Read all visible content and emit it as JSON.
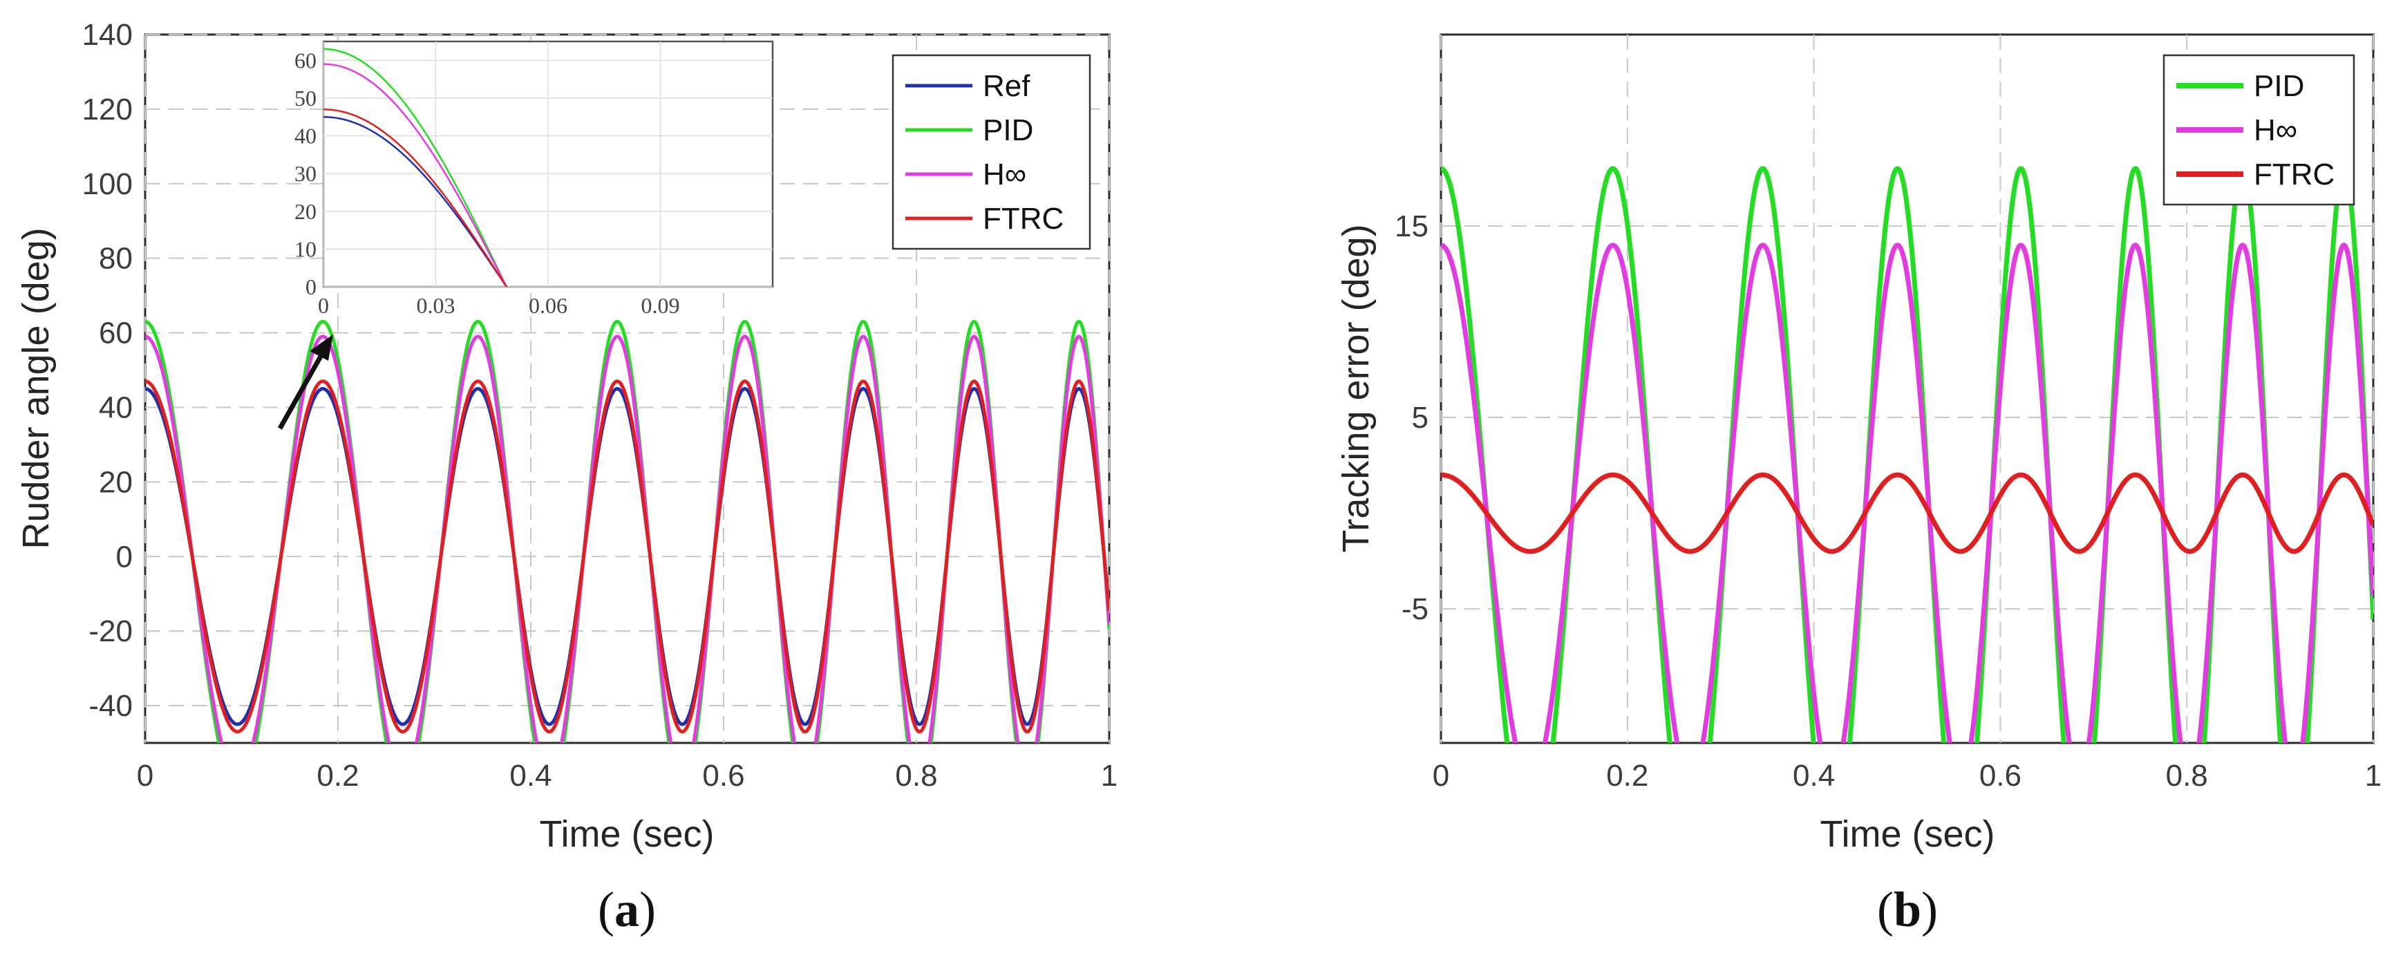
{
  "chart_data": [
    {
      "id": "a",
      "type": "line",
      "caption": {
        "open": "(",
        "letter": "a",
        "close": ")"
      },
      "xlabel": "Time (sec)",
      "ylabel": "Rudder angle (deg)",
      "xlim": [
        0,
        1
      ],
      "ylim": [
        -50,
        140
      ],
      "xticks": [
        "0",
        "0.2",
        "0.4",
        "0.6",
        "0.8",
        "1"
      ],
      "yticks": [
        "-40",
        "-20",
        "0",
        "20",
        "40",
        "60",
        "80",
        "100",
        "120",
        "140"
      ],
      "grid": true,
      "legend_position": "top-right",
      "waveform": "y = A * cos(2*pi*(5*t + 2.3*t^2))",
      "series": [
        {
          "name": "Ref",
          "amplitude": 45,
          "color": "#1f2fb0"
        },
        {
          "name": "PID",
          "amplitude": 63,
          "color": "#22dd22"
        },
        {
          "name": "H∞",
          "amplitude": 59,
          "color": "#e23be2"
        },
        {
          "name": "FTRC",
          "amplitude": 47,
          "color": "#e02020"
        }
      ],
      "inset": {
        "description": "zoom near t = 0",
        "xlim": [
          0,
          0.12
        ],
        "ylim": [
          0,
          65
        ],
        "xticks": [
          "0",
          "0.03",
          "0.06",
          "0.09"
        ],
        "yticks": [
          "0",
          "10",
          "20",
          "30",
          "40",
          "50",
          "60"
        ]
      }
    },
    {
      "id": "b",
      "type": "line",
      "caption": {
        "open": "(",
        "letter": "b",
        "close": ")"
      },
      "xlabel": "Time (sec)",
      "ylabel": "Tracking error (deg)",
      "xlim": [
        0,
        1
      ],
      "ylim": [
        -12,
        25
      ],
      "xticks": [
        "0",
        "0.2",
        "0.4",
        "0.6",
        "0.8",
        "1"
      ],
      "yticks": [
        "-5",
        "5",
        "15"
      ],
      "grid": true,
      "legend_position": "top-right",
      "waveform": "e = A * cos(2*pi*(5*t + 2.3*t^2))",
      "series": [
        {
          "name": "PID",
          "amplitude": 18,
          "color": "#22dd22"
        },
        {
          "name": "H∞",
          "amplitude": 14,
          "color": "#e23be2"
        },
        {
          "name": "FTRC",
          "amplitude": 2,
          "color": "#e02020"
        }
      ]
    }
  ]
}
